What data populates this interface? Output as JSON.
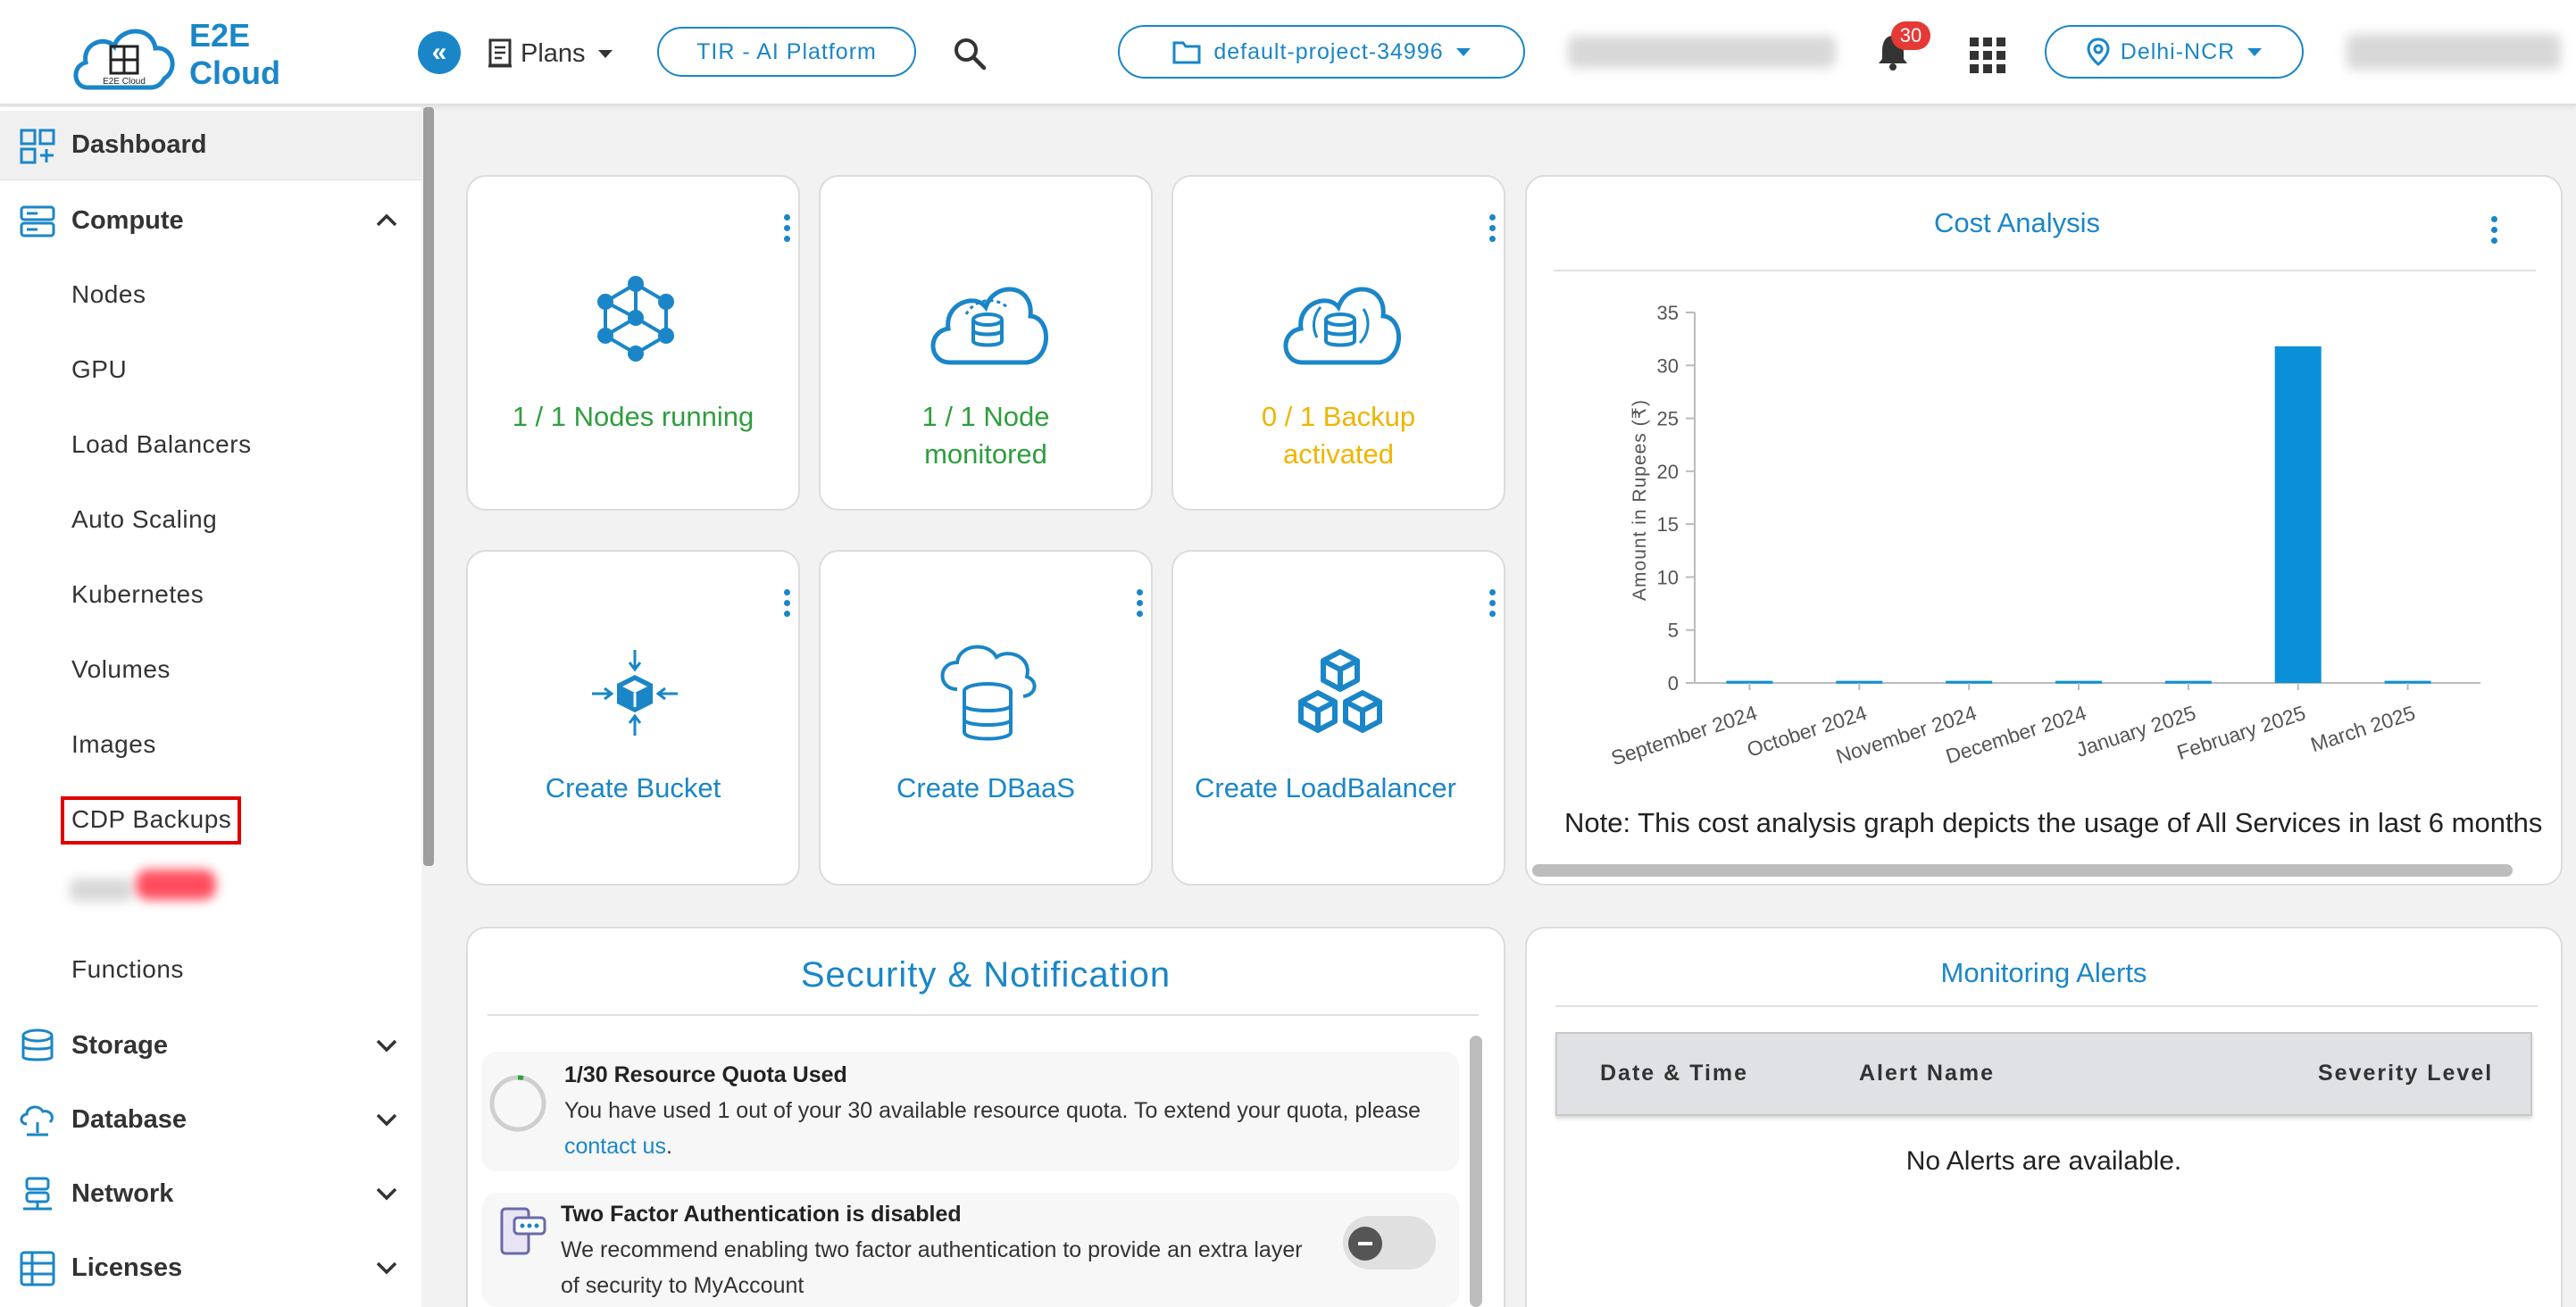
{
  "header": {
    "brand": "E2E Cloud",
    "logo_small": "E2E Cloud",
    "plans_label": "Plans",
    "tir_label": "TIR - AI Platform",
    "project_label": "default-project-34996",
    "notifications_count": "30",
    "region_label": "Delhi-NCR"
  },
  "sidebar": {
    "dashboard": "Dashboard",
    "compute": "Compute",
    "compute_items": [
      "Nodes",
      "GPU",
      "Load Balancers",
      "Auto Scaling",
      "Kubernetes",
      "Volumes",
      "Images",
      "CDP Backups",
      "Functions"
    ],
    "storage": "Storage",
    "database": "Database",
    "network": "Network",
    "licenses": "Licenses"
  },
  "cards": {
    "nodes_running": "1 / 1 Nodes running",
    "node_monitored": [
      "1 / 1 Node",
      "monitored"
    ],
    "backup_activated": [
      "0 / 1 Backup",
      "activated"
    ],
    "create_bucket": "Create Bucket",
    "create_dbaas": "Create DBaaS",
    "create_lb": "Create LoadBalancer"
  },
  "cost_analysis": {
    "title": "Cost Analysis",
    "note": "Note: This cost analysis graph depicts the usage of All Services in last 6 months"
  },
  "chart_data": {
    "type": "bar",
    "title": "",
    "ylabel": "Amount in Rupees (₹)",
    "xlabel": "",
    "ylim": [
      0,
      35
    ],
    "yticks": [
      0,
      5,
      10,
      15,
      20,
      25,
      30,
      35
    ],
    "categories": [
      "September 2024",
      "October 2024",
      "November 2024",
      "December 2024",
      "January 2025",
      "February 2025",
      "March 2025"
    ],
    "values": [
      0.2,
      0.2,
      0.2,
      0.2,
      0.2,
      31.8,
      0.2
    ],
    "grid": false,
    "bar_color": "#0a90d8"
  },
  "security": {
    "title": "Security & Notification",
    "quota_title": "1/30 Resource Quota Used",
    "quota_body": "You have used 1 out of your 30 available resource quota. To extend your quota, please",
    "quota_link": "contact us",
    "quota_end": ".",
    "tfa_title": "Two Factor Authentication is disabled",
    "tfa_body_1": "We recommend enabling two factor authentication to provide an extra layer",
    "tfa_body_2": "of security to MyAccount"
  },
  "alerts": {
    "title": "Monitoring Alerts",
    "col_datetime": "Date & Time",
    "col_name": "Alert Name",
    "col_severity": "Severity Level",
    "empty": "No Alerts are available."
  },
  "colors": {
    "accent": "#1a86c8",
    "success": "#2e9e3e",
    "warning": "#f0b400",
    "danger": "#e00000"
  }
}
